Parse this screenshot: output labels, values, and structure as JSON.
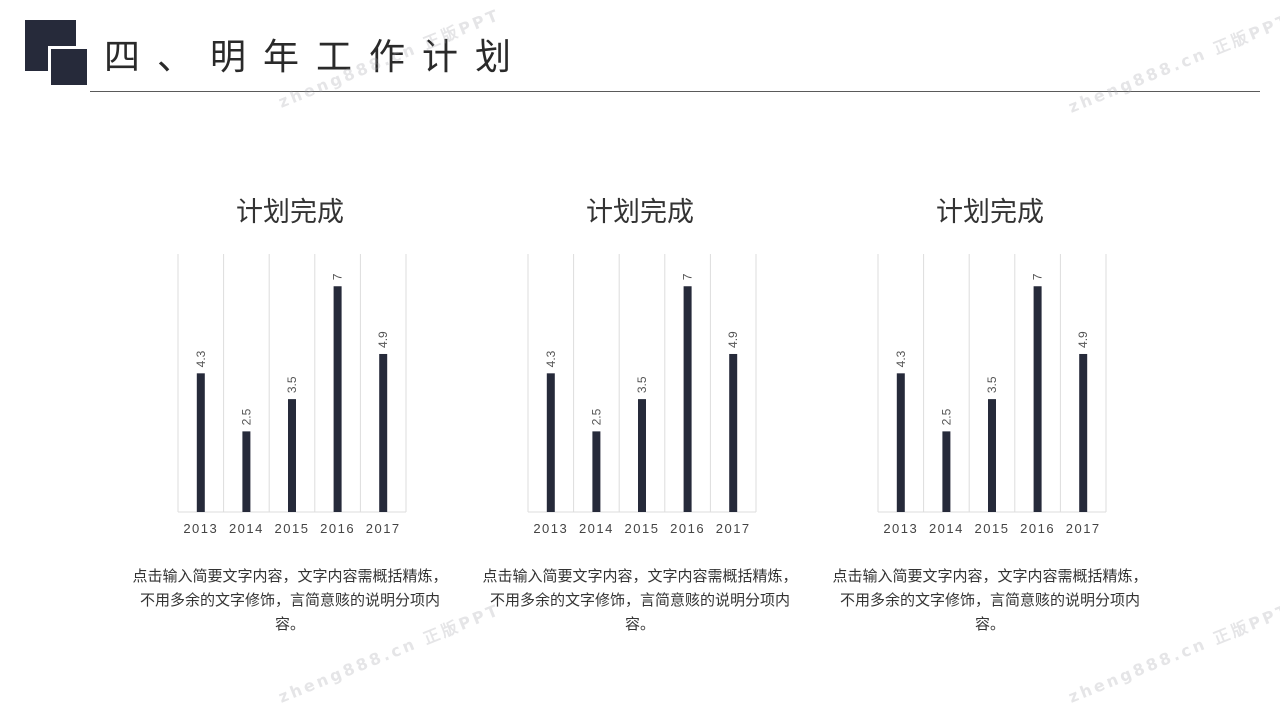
{
  "header": {
    "title": "四、明年工作计划"
  },
  "watermark": "zheng888.cn 正版PPT",
  "colors": {
    "bar": "#262a3a",
    "grid": "#dddddd",
    "accent": "#262a3a"
  },
  "panels": [
    {
      "title": "计划完成",
      "caption": "点击输入简要文字内容，文字内容需概括精炼，不用多余的文字修饰，言简意赅的说明分项内容。"
    },
    {
      "title": "计划完成",
      "caption": "点击输入简要文字内容，文字内容需概括精炼，不用多余的文字修饰，言简意赅的说明分项内容。"
    },
    {
      "title": "计划完成",
      "caption": "点击输入简要文字内容，文字内容需概括精炼，不用多余的文字修饰，言简意赅的说明分项内容。"
    }
  ],
  "chart_data": [
    {
      "type": "bar",
      "title": "计划完成",
      "categories": [
        "2013",
        "2014",
        "2015",
        "2016",
        "2017"
      ],
      "values": [
        4.3,
        2.5,
        3.5,
        7,
        4.9
      ],
      "value_labels": [
        "4.3",
        "2.5",
        "3.5",
        "7",
        "4.9"
      ],
      "ylim": [
        0,
        8
      ],
      "grid": "vertical"
    },
    {
      "type": "bar",
      "title": "计划完成",
      "categories": [
        "2013",
        "2014",
        "2015",
        "2016",
        "2017"
      ],
      "values": [
        4.3,
        2.5,
        3.5,
        7,
        4.9
      ],
      "value_labels": [
        "4.3",
        "2.5",
        "3.5",
        "7",
        "4.9"
      ],
      "ylim": [
        0,
        8
      ],
      "grid": "vertical"
    },
    {
      "type": "bar",
      "title": "计划完成",
      "categories": [
        "2013",
        "2014",
        "2015",
        "2016",
        "2017"
      ],
      "values": [
        4.3,
        2.5,
        3.5,
        7,
        4.9
      ],
      "value_labels": [
        "4.3",
        "2.5",
        "3.5",
        "7",
        "4.9"
      ],
      "ylim": [
        0,
        8
      ],
      "grid": "vertical"
    }
  ]
}
